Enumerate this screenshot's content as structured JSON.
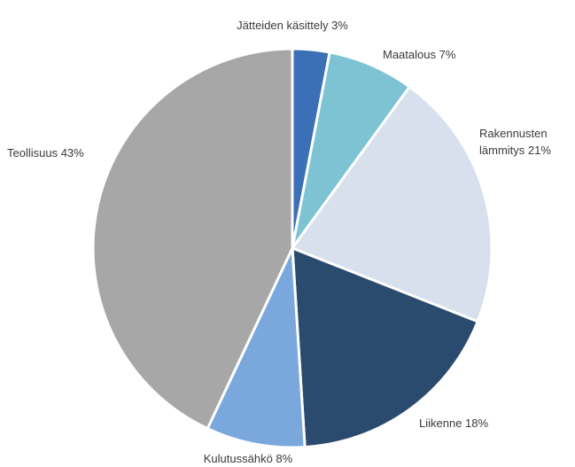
{
  "chart_data": {
    "type": "pie",
    "title": "",
    "slices": [
      {
        "label": "Jätteiden käsittely 3%",
        "lines": [
          "Jätteiden käsittely 3%"
        ],
        "value": 3,
        "color": "#3b6fb6"
      },
      {
        "label": "Maatalous 7%",
        "lines": [
          "Maatalous 7%"
        ],
        "value": 7,
        "color": "#7ec3d4"
      },
      {
        "label": "Rakennusten lämmitys 21%",
        "lines": [
          "Rakennusten",
          "lämmitys 21%"
        ],
        "value": 21,
        "color": "#d7e0ec"
      },
      {
        "label": "Liikenne 18%",
        "lines": [
          "Liikenne 18%"
        ],
        "value": 18,
        "color": "#2a4b6e"
      },
      {
        "label": "Kulutussähkö 8%",
        "lines": [
          "Kulutussähkö 8%"
        ],
        "value": 8,
        "color": "#7aa7dc"
      },
      {
        "label": "Teollisuus 43%",
        "lines": [
          "Teollisuus 43%"
        ],
        "value": 43,
        "color": "#a7a7a7"
      }
    ],
    "start_angle": "12 o'clock",
    "direction": "clockwise",
    "legend": "none"
  }
}
